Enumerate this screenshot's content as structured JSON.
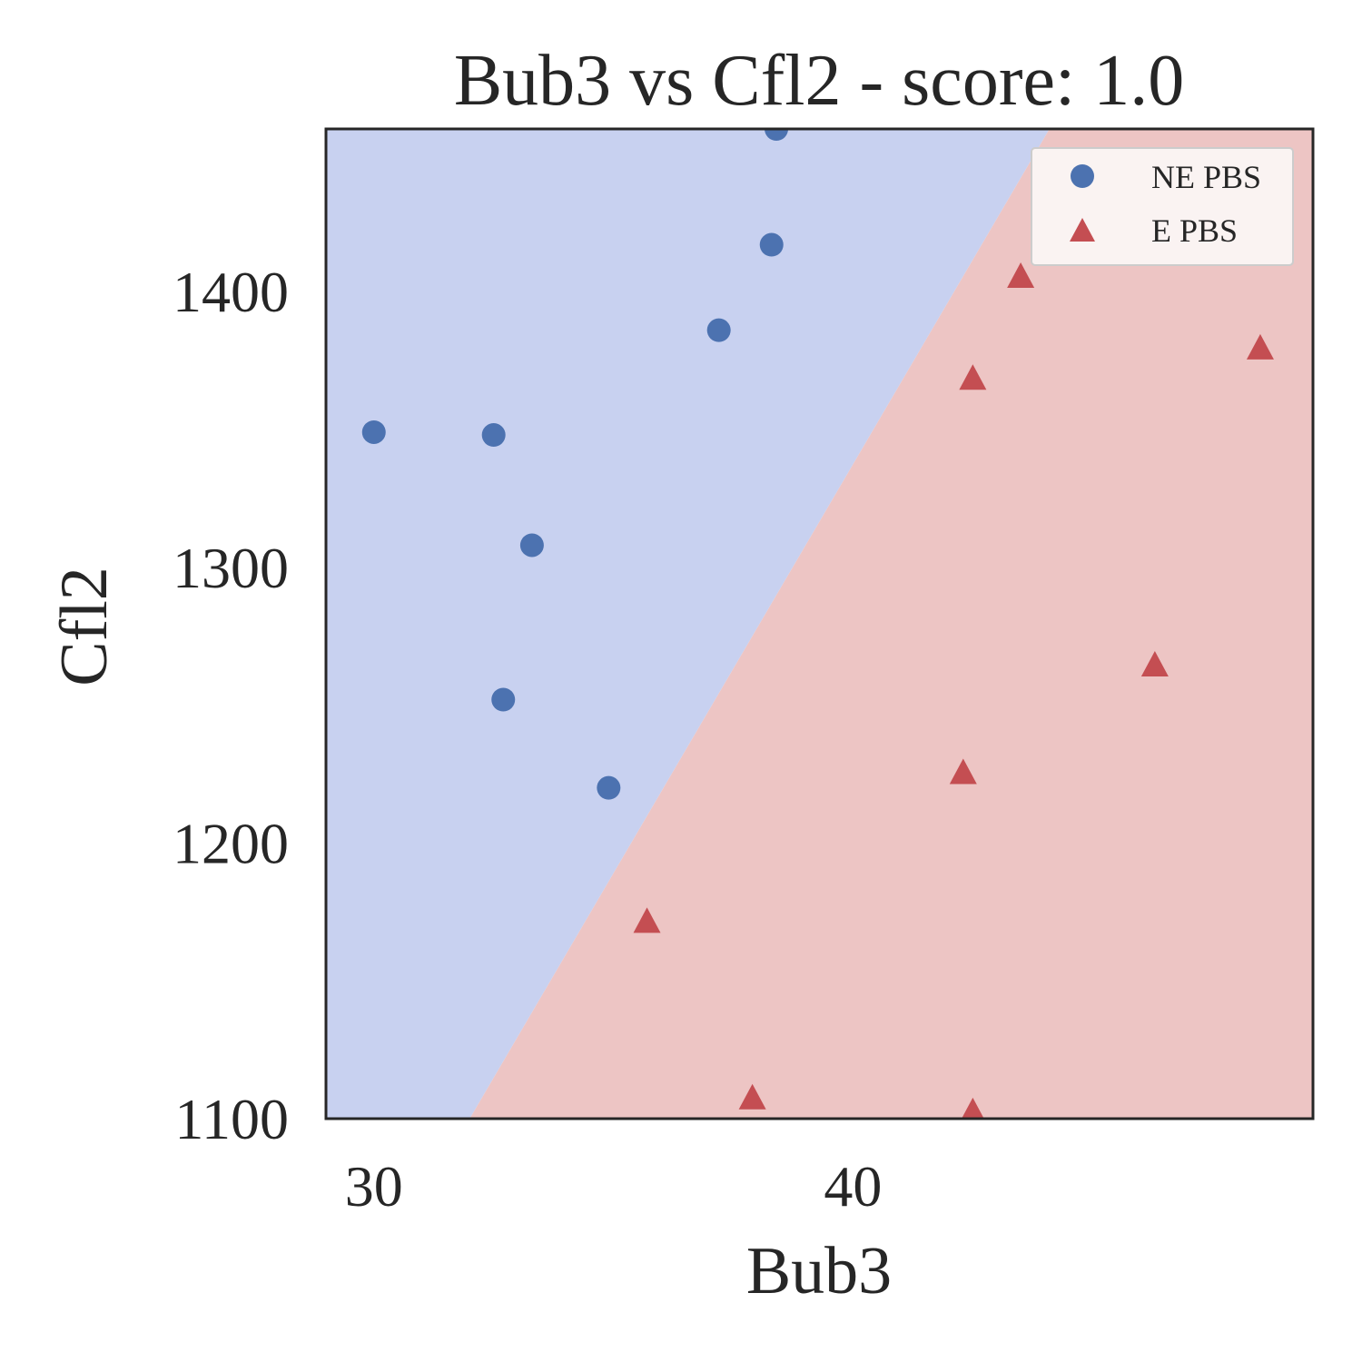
{
  "chart_data": {
    "type": "scatter",
    "title": "Bub3 vs Cfl2 - score: 1.0",
    "xlabel": "Bub3",
    "ylabel": "Cfl2",
    "xlim": [
      29.0,
      49.6
    ],
    "ylim": [
      1100,
      1459
    ],
    "xticks": [
      30,
      40
    ],
    "yticks": [
      1100,
      1200,
      1300,
      1400
    ],
    "grid": false,
    "legend_position": "top-right",
    "decision_boundary": {
      "points": [
        [
          32.0,
          1100
        ],
        [
          44.1,
          1459
        ]
      ],
      "left_region_color": "#c8d1f0",
      "right_region_color": "#edc5c4"
    },
    "series": [
      {
        "name": "NE PBS",
        "marker": "circle",
        "color": "#4c72b0",
        "points": [
          [
            30.0,
            1349
          ],
          [
            32.5,
            1348
          ],
          [
            33.3,
            1308
          ],
          [
            32.7,
            1252
          ],
          [
            34.9,
            1220
          ],
          [
            37.2,
            1386
          ],
          [
            38.3,
            1417
          ],
          [
            38.4,
            1459
          ]
        ]
      },
      {
        "name": "E PBS",
        "marker": "triangle",
        "color": "#c44e52",
        "points": [
          [
            35.7,
            1171
          ],
          [
            37.9,
            1107
          ],
          [
            42.3,
            1225
          ],
          [
            42.5,
            1102
          ],
          [
            42.5,
            1368
          ],
          [
            43.5,
            1405
          ],
          [
            46.3,
            1264
          ],
          [
            48.5,
            1379
          ]
        ]
      }
    ]
  }
}
